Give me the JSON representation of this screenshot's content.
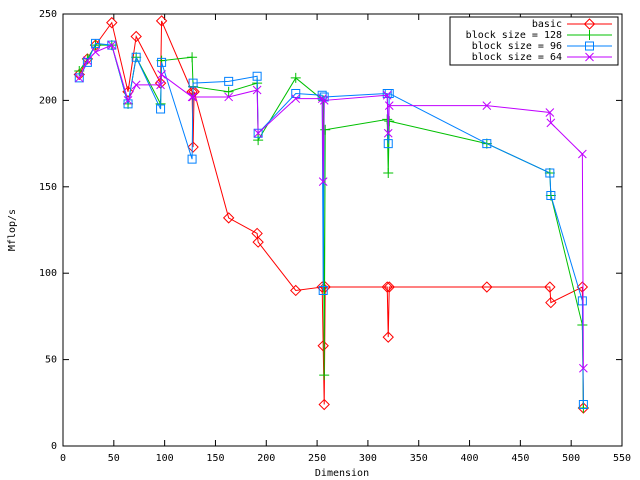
{
  "chart_data": {
    "type": "line",
    "x_label": "Dimension",
    "y_label": "Mflop/s",
    "xlim": [
      0,
      550
    ],
    "xticks": [
      0,
      50,
      100,
      150,
      200,
      250,
      300,
      350,
      400,
      450,
      500,
      550
    ],
    "ylim": [
      0,
      250
    ],
    "yticks": [
      0,
      50,
      100,
      150,
      200,
      250
    ],
    "legend": "top-right",
    "series": [
      {
        "name": "basic",
        "color": "#ff0000",
        "marker": "diamond",
        "x": [
          16,
          24,
          32,
          48,
          64,
          72,
          96,
          97,
          127,
          128,
          129,
          163,
          191,
          192,
          229,
          255,
          256,
          257,
          258,
          319,
          320,
          321,
          417,
          479,
          480,
          511,
          512
        ],
        "values": [
          215,
          224,
          232,
          245,
          205,
          237,
          210,
          246,
          205,
          173,
          205,
          132,
          123,
          118,
          90,
          92,
          58,
          24,
          92,
          92,
          63,
          92,
          92,
          92,
          83,
          92,
          22
        ]
      },
      {
        "name": "block size = 128",
        "color": "#00c000",
        "marker": "plus",
        "x": [
          16,
          24,
          32,
          48,
          64,
          72,
          96,
          97,
          127,
          128,
          163,
          191,
          192,
          229,
          256,
          257,
          258,
          319,
          320,
          321,
          417,
          479,
          480,
          511,
          512
        ],
        "values": [
          217,
          224,
          232,
          232,
          198,
          225,
          198,
          223,
          225,
          208,
          205,
          210,
          177,
          213,
          200,
          41,
          183,
          189,
          158,
          188,
          175,
          158,
          145,
          70,
          22
        ]
      },
      {
        "name": "block size = 96",
        "color": "#0080ff",
        "marker": "square",
        "x": [
          16,
          24,
          32,
          48,
          64,
          72,
          96,
          97,
          127,
          128,
          163,
          191,
          192,
          229,
          255,
          256,
          257,
          319,
          320,
          321,
          417,
          479,
          480,
          511,
          512
        ],
        "values": [
          213,
          222,
          233,
          232,
          198,
          225,
          195,
          222,
          166,
          210,
          211,
          214,
          181,
          204,
          203,
          90,
          202,
          204,
          175,
          204,
          175,
          158,
          145,
          84,
          24
        ]
      },
      {
        "name": "block size = 64",
        "color": "#c000ff",
        "marker": "cross",
        "x": [
          16,
          24,
          32,
          48,
          64,
          72,
          96,
          97,
          127,
          128,
          163,
          191,
          192,
          229,
          255,
          256,
          257,
          319,
          320,
          321,
          417,
          479,
          480,
          511,
          512
        ],
        "values": [
          213,
          223,
          228,
          232,
          200,
          209,
          209,
          215,
          202,
          202,
          202,
          206,
          181,
          201,
          201,
          153,
          200,
          203,
          181,
          197,
          197,
          193,
          187,
          169,
          45
        ]
      }
    ]
  }
}
